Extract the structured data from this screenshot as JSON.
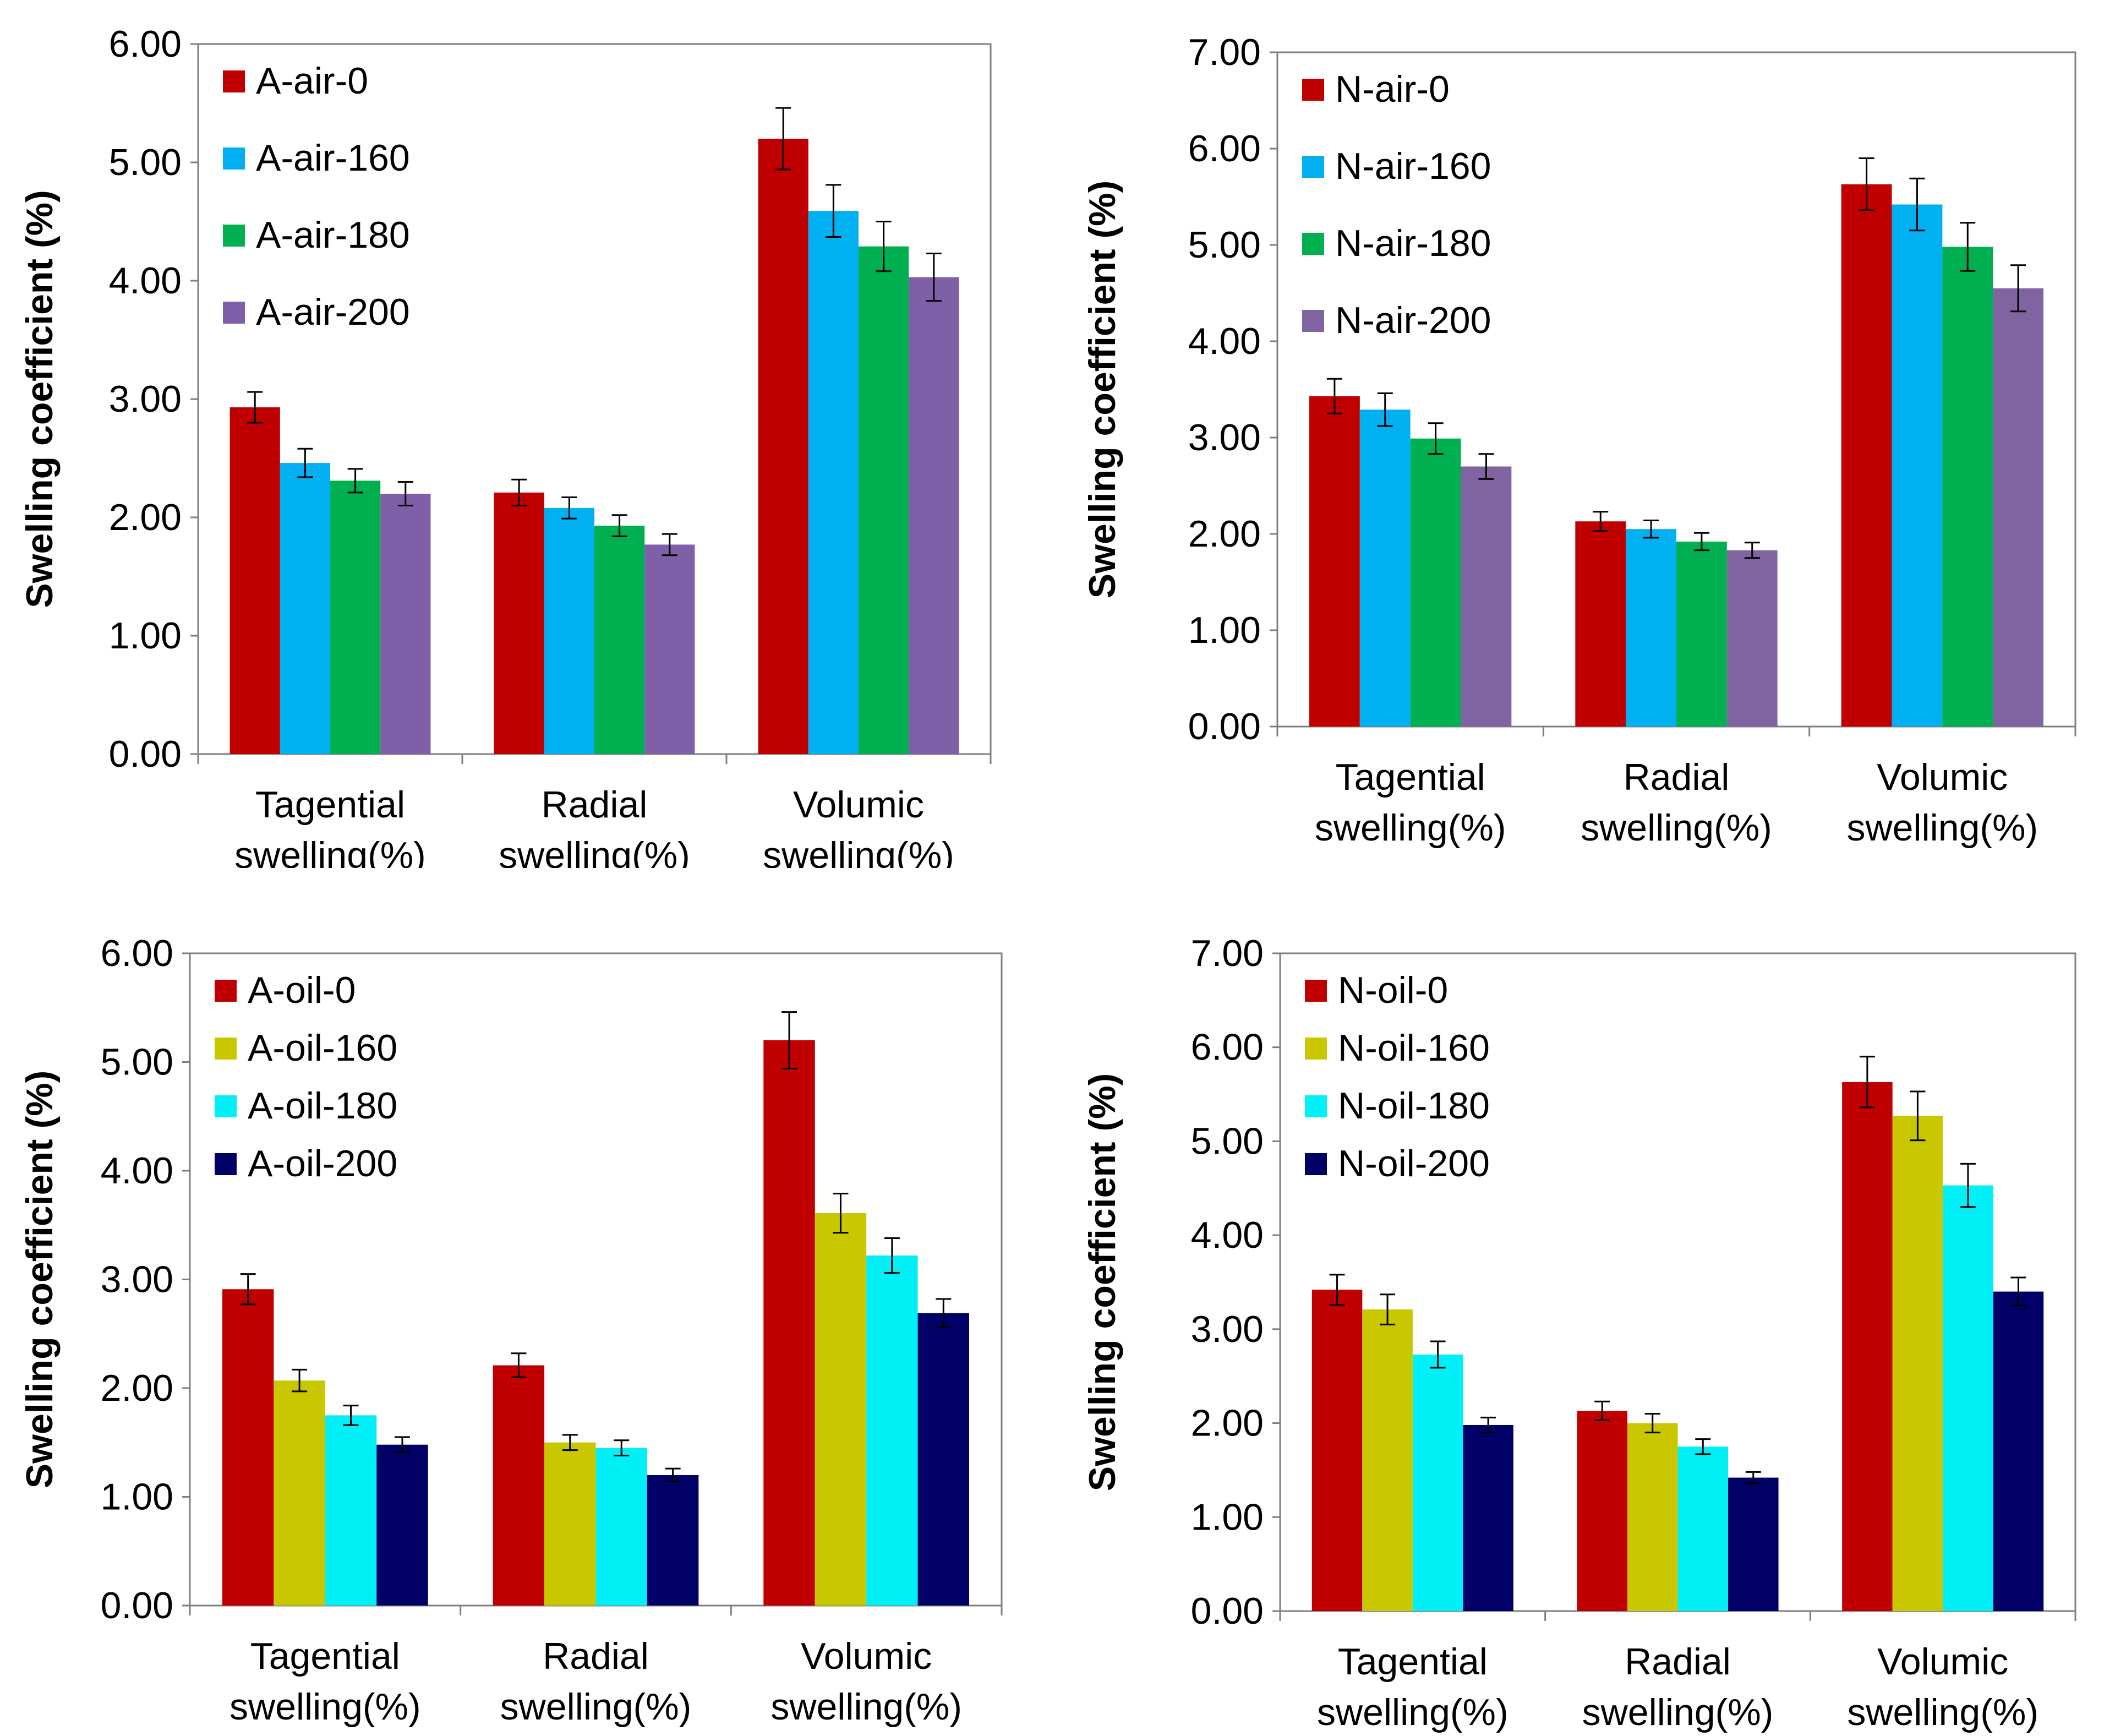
{
  "chart_data": [
    {
      "type": "bar",
      "panel": "top-left",
      "categories": [
        [
          "Tagential",
          "swelling(%)"
        ],
        [
          "Radial",
          "swelling(%)"
        ],
        [
          "Volumic",
          "swelling(%)"
        ]
      ],
      "ylabel": "Swelling coefficient (%)",
      "yticks": [
        "0.00",
        "1.00",
        "2.00",
        "3.00",
        "4.00",
        "5.00",
        "6.00"
      ],
      "ylim": [
        0,
        6
      ],
      "legend_position": "top-left",
      "series": [
        {
          "name": "A-air-0",
          "color": "#c00000",
          "values": [
            2.93,
            2.21,
            5.2
          ],
          "errors": [
            0.13,
            0.11,
            0.26
          ]
        },
        {
          "name": "A-air-160",
          "color": "#00b0f0",
          "values": [
            2.46,
            2.08,
            4.59
          ],
          "errors": [
            0.12,
            0.09,
            0.22
          ]
        },
        {
          "name": "A-air-180",
          "color": "#00b050",
          "values": [
            2.31,
            1.93,
            4.29
          ],
          "errors": [
            0.1,
            0.09,
            0.21
          ]
        },
        {
          "name": "A-air-200",
          "color": "#7f5fa8",
          "values": [
            2.2,
            1.77,
            4.03
          ],
          "errors": [
            0.1,
            0.09,
            0.2
          ]
        }
      ]
    },
    {
      "type": "bar",
      "panel": "top-right",
      "categories": [
        [
          "Tagential",
          "swelling(%)"
        ],
        [
          "Radial",
          "swelling(%)"
        ],
        [
          "Volumic",
          "swelling(%)"
        ]
      ],
      "ylabel": "Swelling coefficient (%)",
      "yticks": [
        "0.00",
        "1.00",
        "2.00",
        "3.00",
        "4.00",
        "5.00",
        "6.00",
        "7.00"
      ],
      "ylim": [
        0,
        7
      ],
      "legend_position": "top-left",
      "series": [
        {
          "name": "N-air-0",
          "color": "#c00000",
          "values": [
            3.43,
            2.13,
            5.63
          ],
          "errors": [
            0.18,
            0.1,
            0.27
          ]
        },
        {
          "name": "N-air-160",
          "color": "#00b0f0",
          "values": [
            3.29,
            2.05,
            5.42
          ],
          "errors": [
            0.17,
            0.09,
            0.27
          ]
        },
        {
          "name": "N-air-180",
          "color": "#00b050",
          "values": [
            2.99,
            1.92,
            4.98
          ],
          "errors": [
            0.16,
            0.09,
            0.25
          ]
        },
        {
          "name": "N-air-200",
          "color": "#8064a2",
          "values": [
            2.7,
            1.83,
            4.55
          ],
          "errors": [
            0.13,
            0.08,
            0.24
          ]
        }
      ]
    },
    {
      "type": "bar",
      "panel": "bottom-left",
      "categories": [
        [
          "Tagential",
          "swelling(%)"
        ],
        [
          "Radial",
          "swelling(%)"
        ],
        [
          "Volumic",
          "swelling(%)"
        ]
      ],
      "ylabel": "Swelling coefficient (%)",
      "yticks": [
        "0.00",
        "1.00",
        "2.00",
        "3.00",
        "4.00",
        "5.00",
        "6.00"
      ],
      "ylim": [
        0,
        6
      ],
      "legend_position": "top-left",
      "series": [
        {
          "name": "A-oil-0",
          "color": "#c00000",
          "values": [
            2.91,
            2.21,
            5.2
          ],
          "errors": [
            0.14,
            0.11,
            0.26
          ]
        },
        {
          "name": "A-oil-160",
          "color": "#c9c700",
          "values": [
            2.07,
            1.5,
            3.61
          ],
          "errors": [
            0.1,
            0.07,
            0.18
          ]
        },
        {
          "name": "A-oil-180",
          "color": "#00f0f8",
          "values": [
            1.75,
            1.45,
            3.22
          ],
          "errors": [
            0.09,
            0.07,
            0.16
          ]
        },
        {
          "name": "A-oil-200",
          "color": "#000066",
          "values": [
            1.48,
            1.2,
            2.69
          ],
          "errors": [
            0.07,
            0.06,
            0.13
          ]
        }
      ]
    },
    {
      "type": "bar",
      "panel": "bottom-right",
      "categories": [
        [
          "Tagential",
          "swelling(%)"
        ],
        [
          "Radial",
          "swelling(%)"
        ],
        [
          "Volumic",
          "swelling(%)"
        ]
      ],
      "ylabel": "Swelling coefficient (%)",
      "yticks": [
        "0.00",
        "1.00",
        "2.00",
        "3.00",
        "4.00",
        "5.00",
        "6.00",
        "7.00"
      ],
      "ylim": [
        0,
        7
      ],
      "legend_position": "top-left",
      "series": [
        {
          "name": "N-oil-0",
          "color": "#c00000",
          "values": [
            3.42,
            2.13,
            5.63
          ],
          "errors": [
            0.16,
            0.1,
            0.27
          ]
        },
        {
          "name": "N-oil-160",
          "color": "#c9c700",
          "values": [
            3.21,
            2.0,
            5.27
          ],
          "errors": [
            0.16,
            0.1,
            0.26
          ]
        },
        {
          "name": "N-oil-180",
          "color": "#00f0f8",
          "values": [
            2.73,
            1.75,
            4.53
          ],
          "errors": [
            0.14,
            0.08,
            0.23
          ]
        },
        {
          "name": "N-oil-200",
          "color": "#000066",
          "values": [
            1.98,
            1.42,
            3.4
          ],
          "errors": [
            0.08,
            0.06,
            0.15
          ]
        }
      ]
    }
  ]
}
